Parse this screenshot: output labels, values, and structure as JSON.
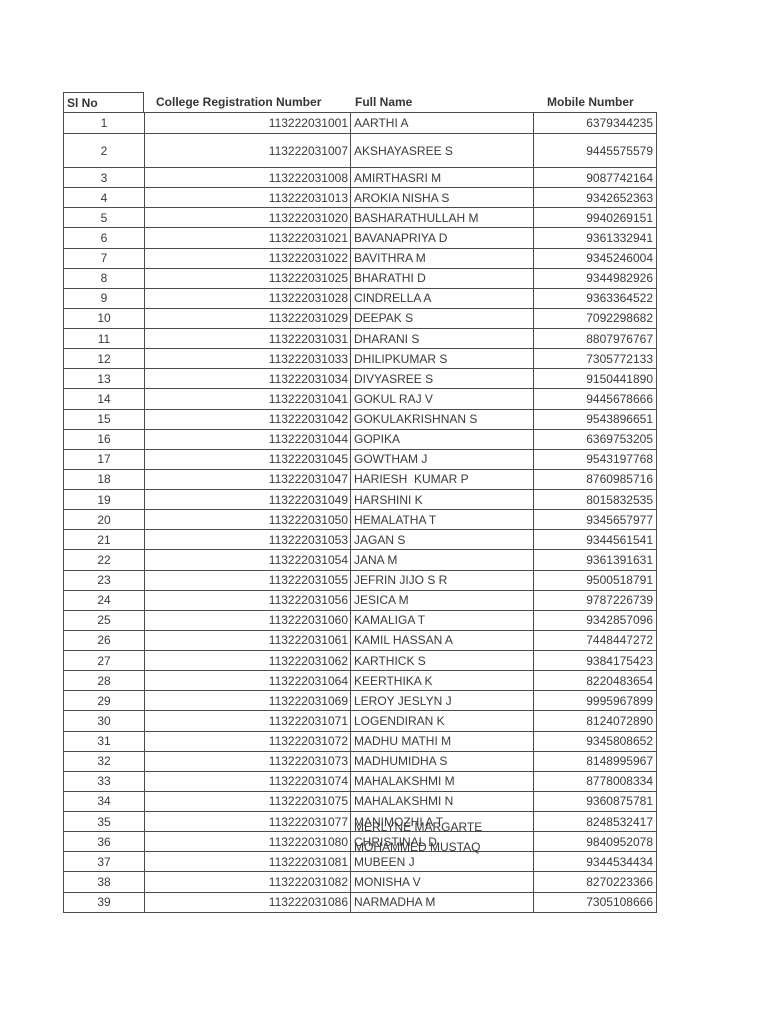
{
  "table": {
    "headers": {
      "sl": "Sl No",
      "reg": "College Registration Number",
      "name": "Full Name",
      "mobile": "Mobile Number"
    },
    "rows": [
      {
        "sl": "1",
        "reg": "113222031001",
        "name": "AARTHI A",
        "mobile": "6379344235"
      },
      {
        "sl": "2",
        "reg": "113222031007",
        "name": "AKSHAYASREE S",
        "mobile": "9445575579"
      },
      {
        "sl": "3",
        "reg": "113222031008",
        "name": "AMIRTHASRI M",
        "mobile": "9087742164"
      },
      {
        "sl": "4",
        "reg": "113222031013",
        "name": "AROKIA NISHA S",
        "mobile": "9342652363"
      },
      {
        "sl": "5",
        "reg": "113222031020",
        "name": "BASHARATHULLAH M",
        "mobile": "9940269151"
      },
      {
        "sl": "6",
        "reg": "113222031021",
        "name": "BAVANAPRIYA D",
        "mobile": "9361332941"
      },
      {
        "sl": "7",
        "reg": "113222031022",
        "name": "BAVITHRA M",
        "mobile": "9345246004"
      },
      {
        "sl": "8",
        "reg": "113222031025",
        "name": "BHARATHI D",
        "mobile": "9344982926"
      },
      {
        "sl": "9",
        "reg": "113222031028",
        "name": "CINDRELLA A",
        "mobile": "9363364522"
      },
      {
        "sl": "10",
        "reg": "113222031029",
        "name": "DEEPAK S",
        "mobile": "7092298682"
      },
      {
        "sl": "11",
        "reg": "113222031031",
        "name": "DHARANI S",
        "mobile": "8807976767"
      },
      {
        "sl": "12",
        "reg": "113222031033",
        "name": "DHILIPKUMAR S",
        "mobile": "7305772133"
      },
      {
        "sl": "13",
        "reg": "113222031034",
        "name": "DIVYASREE S",
        "mobile": "9150441890"
      },
      {
        "sl": "14",
        "reg": "113222031041",
        "name": "GOKUL RAJ V",
        "mobile": "9445678666"
      },
      {
        "sl": "15",
        "reg": "113222031042",
        "name": "GOKULAKRISHNAN S",
        "mobile": "9543896651"
      },
      {
        "sl": "16",
        "reg": "113222031044",
        "name": "GOPIKA",
        "mobile": "6369753205"
      },
      {
        "sl": "17",
        "reg": "113222031045",
        "name": "GOWTHAM J",
        "mobile": "9543197768"
      },
      {
        "sl": "18",
        "reg": "113222031047",
        "name": "HARIESH  KUMAR P",
        "mobile": "8760985716"
      },
      {
        "sl": "19",
        "reg": "113222031049",
        "name": "HARSHINI K",
        "mobile": "8015832535"
      },
      {
        "sl": "20",
        "reg": "113222031050",
        "name": "HEMALATHA T",
        "mobile": "9345657977"
      },
      {
        "sl": "21",
        "reg": "113222031053",
        "name": "JAGAN S",
        "mobile": "9344561541"
      },
      {
        "sl": "22",
        "reg": "113222031054",
        "name": "JANA M",
        "mobile": "9361391631"
      },
      {
        "sl": "23",
        "reg": "113222031055",
        "name": "JEFRIN JIJO S R",
        "mobile": "9500518791"
      },
      {
        "sl": "24",
        "reg": "113222031056",
        "name": "JESICA M",
        "mobile": "9787226739"
      },
      {
        "sl": "25",
        "reg": "113222031060",
        "name": "KAMALIGA T",
        "mobile": "9342857096"
      },
      {
        "sl": "26",
        "reg": "113222031061",
        "name": "KAMIL HASSAN A",
        "mobile": "7448447272"
      },
      {
        "sl": "27",
        "reg": "113222031062",
        "name": "KARTHICK S",
        "mobile": "9384175423"
      },
      {
        "sl": "28",
        "reg": "113222031064",
        "name": "KEERTHIKA K",
        "mobile": "8220483654"
      },
      {
        "sl": "29",
        "reg": "113222031069",
        "name": "LEROY JESLYN J",
        "mobile": "9995967899"
      },
      {
        "sl": "30",
        "reg": "113222031071",
        "name": "LOGENDIRAN K",
        "mobile": "8124072890"
      },
      {
        "sl": "31",
        "reg": "113222031072",
        "name": "MADHU MATHI M",
        "mobile": "9345808652"
      },
      {
        "sl": "32",
        "reg": "113222031073",
        "name": "MADHUMIDHA S",
        "mobile": "8148995967"
      },
      {
        "sl": "33",
        "reg": "113222031074",
        "name": "MAHALAKSHMI M",
        "mobile": "8778008334"
      },
      {
        "sl": "34",
        "reg": "113222031075",
        "name": "MAHALAKSHMI N",
        "mobile": "9360875781"
      },
      {
        "sl": "35",
        "reg": "113222031077",
        "name": "MANIMOZHI A T",
        "ghost": "MERLYNE MARGARTE",
        "mobile": "8248532417"
      },
      {
        "sl": "36",
        "reg": "113222031080",
        "name": "CHRISTINAL D",
        "ghost": "MOHAMMED MUSTAQ",
        "mobile": "9840952078"
      },
      {
        "sl": "37",
        "reg": "113222031081",
        "name": "MUBEEN J",
        "mobile": "9344534434"
      },
      {
        "sl": "38",
        "reg": "113222031082",
        "name": "MONISHA V",
        "mobile": "8270223366"
      },
      {
        "sl": "39",
        "reg": "113222031086",
        "name": "NARMADHA M",
        "mobile": "7305108666"
      }
    ]
  }
}
